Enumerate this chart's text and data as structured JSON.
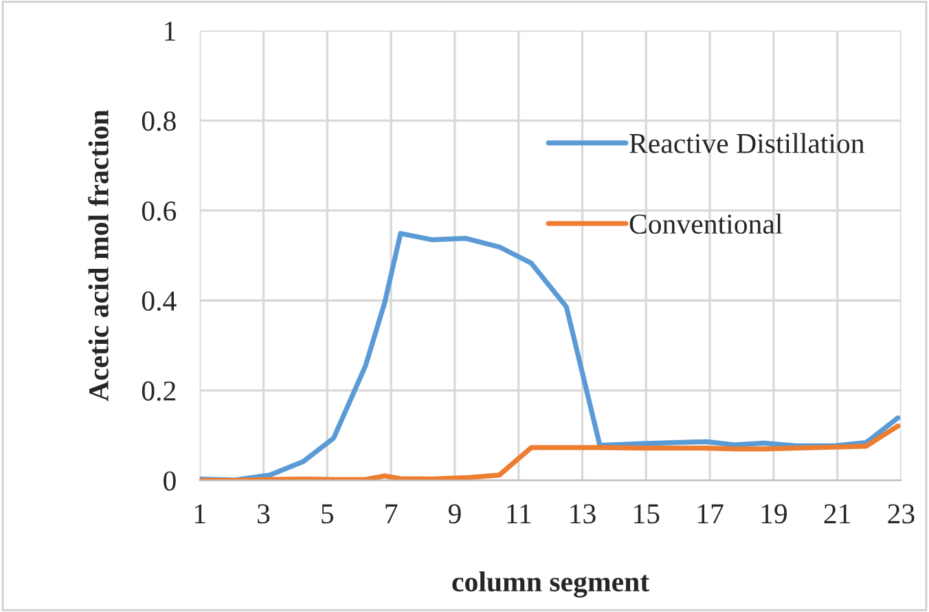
{
  "chart_data": {
    "type": "line",
    "xlabel": "column segment",
    "ylabel": "Acetic acid mol fraction",
    "x": [
      1,
      2.1,
      3.2,
      4.25,
      5.2,
      6.2,
      6.8,
      7.3,
      8.3,
      9.35,
      10.4,
      11.4,
      12.5,
      13.55,
      14.9,
      15.9,
      16.9,
      17.8,
      18.7,
      19.7,
      20.9,
      21.9,
      22.9
    ],
    "series": [
      {
        "name": "Reactive Distillation",
        "color": "#5b9bd5",
        "values": [
          0.003,
          0.001,
          0.012,
          0.042,
          0.094,
          0.255,
          0.395,
          0.549,
          0.535,
          0.538,
          0.519,
          0.483,
          0.386,
          0.078,
          0.082,
          0.084,
          0.086,
          0.079,
          0.083,
          0.077,
          0.077,
          0.084,
          0.139
        ]
      },
      {
        "name": "Conventional",
        "color": "#ed7d31",
        "values": [
          0.0,
          0.0,
          0.002,
          0.003,
          0.002,
          0.002,
          0.01,
          0.004,
          0.003,
          0.006,
          0.012,
          0.073,
          0.073,
          0.073,
          0.072,
          0.072,
          0.072,
          0.07,
          0.07,
          0.072,
          0.074,
          0.076,
          0.121
        ]
      }
    ],
    "xlim": [
      1,
      23
    ],
    "xticks": [
      1,
      3,
      5,
      7,
      9,
      11,
      13,
      15,
      17,
      19,
      21,
      23
    ],
    "ylim": [
      0,
      1
    ],
    "yticks": [
      0,
      0.2,
      0.4,
      0.6,
      0.8,
      1
    ],
    "grid": true,
    "legend": "top right",
    "marker": "none",
    "line_style": "solid"
  }
}
